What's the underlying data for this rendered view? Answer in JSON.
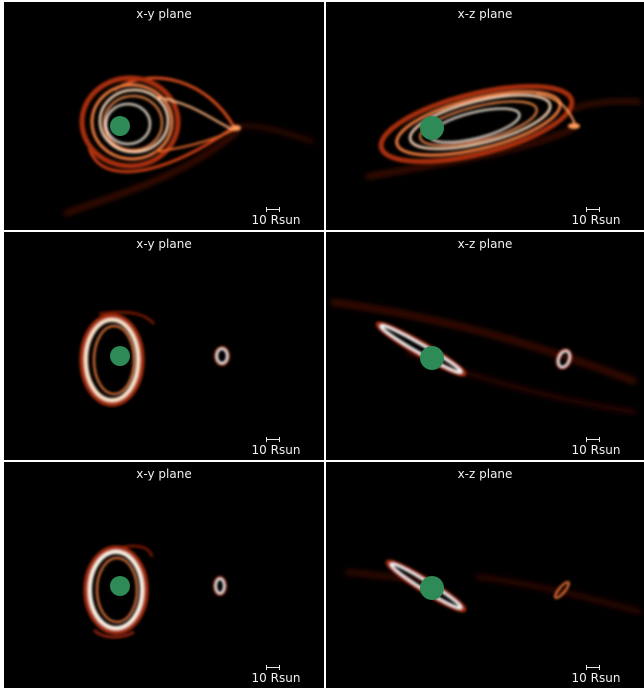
{
  "colors": {
    "background": "#000000",
    "divider": "#ffffff",
    "disk_hot": "#fff6ec",
    "disk_mid": "#f47a3a",
    "disk_cool": "#8a1f05",
    "star": "#2e8b57",
    "text": "#f2f2f2"
  },
  "panels": [
    {
      "title": "x-y plane",
      "scale_label": "10 Rsun"
    },
    {
      "title": "x-z plane",
      "scale_label": "10 Rsun"
    },
    {
      "title": "x-y plane",
      "scale_label": "10 Rsun"
    },
    {
      "title": "x-z plane",
      "scale_label": "10 Rsun"
    },
    {
      "title": "x-y plane",
      "scale_label": "10 Rsun"
    },
    {
      "title": "x-z plane",
      "scale_label": "10 Rsun"
    }
  ]
}
